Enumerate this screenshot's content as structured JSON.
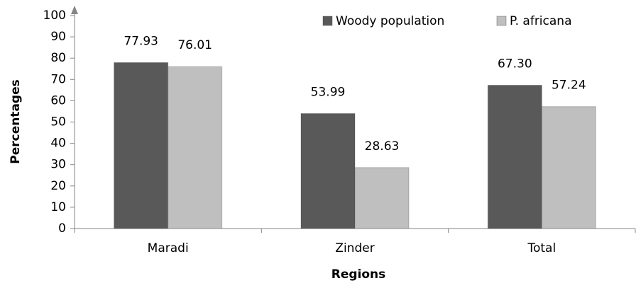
{
  "chart_data": {
    "type": "bar",
    "x_label": "Regions",
    "y_label": "Percentages",
    "categories": [
      "Maradi",
      "Zinder",
      "Total"
    ],
    "series": [
      {
        "name": "Woody population",
        "color": "#595959",
        "values": [
          77.93,
          53.99,
          67.3
        ],
        "value_labels": [
          "77.93",
          "53.99",
          "67.30"
        ]
      },
      {
        "name": "P. africana",
        "color": "#bfbfbf",
        "values": [
          76.01,
          28.63,
          57.24
        ],
        "value_labels": [
          "76.01",
          "28.63",
          "57.24"
        ]
      }
    ],
    "ylim": [
      0,
      100
    ],
    "yticks": [
      0,
      10,
      20,
      30,
      40,
      50,
      60,
      70,
      80,
      90,
      100
    ],
    "grid": false,
    "legend": "top-right"
  }
}
